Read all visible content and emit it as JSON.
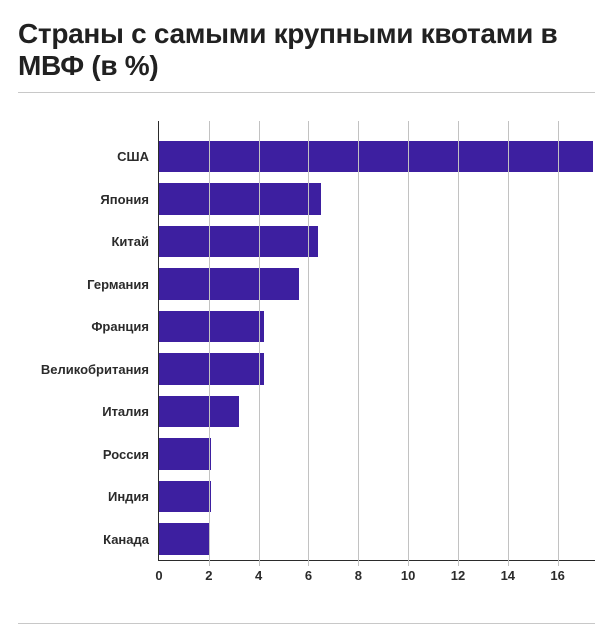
{
  "title": "Страны с самыми крупными квотами в МВФ (в %)",
  "chart": {
    "type": "bar",
    "orientation": "horizontal",
    "bar_color": "#3d1fa0",
    "background_color": "#ffffff",
    "grid_color": "#c2c2c2",
    "axis_color": "#2b2b2b",
    "label_color": "#2b2b2b",
    "label_fontsize": 13,
    "label_fontweight": 700,
    "title_fontsize": 28,
    "title_fontweight": 800,
    "title_color": "#212121",
    "xlim": [
      0,
      17.5
    ],
    "xtick_step": 2,
    "xticks": [
      0,
      2,
      4,
      6,
      8,
      10,
      12,
      14,
      16
    ],
    "categories": [
      "США",
      "Япония",
      "Китай",
      "Германия",
      "Франция",
      "Великобритания",
      "Италия",
      "Россия",
      "Индия",
      "Канада"
    ],
    "values": [
      17.4,
      6.5,
      6.4,
      5.6,
      4.2,
      4.2,
      3.2,
      2.1,
      2.1,
      2.0
    ],
    "bar_height_ratio": 0.74
  }
}
